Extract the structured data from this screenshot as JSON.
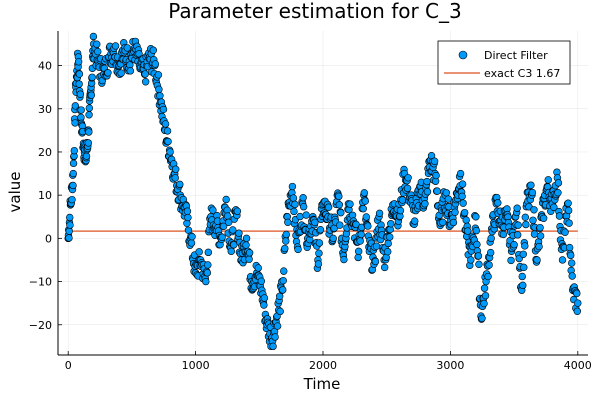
{
  "chart_data": {
    "type": "scatter",
    "title": "Parameter estimation for C_3",
    "xlabel": "Time",
    "ylabel": "value",
    "xlim": [
      -80,
      4080
    ],
    "ylim": [
      -27,
      48
    ],
    "xticks": [
      0,
      1000,
      2000,
      3000,
      4000
    ],
    "yticks": [
      -20,
      -10,
      0,
      10,
      20,
      30,
      40
    ],
    "grid": true,
    "legend_position": "top-right",
    "series": [
      {
        "name": "Direct Filter",
        "kind": "scatter",
        "color": "#009AFA",
        "x": [
          0,
          20,
          40,
          60,
          80,
          100,
          120,
          140,
          160,
          180,
          200,
          240,
          280,
          320,
          360,
          400,
          440,
          480,
          520,
          560,
          600,
          640,
          680,
          720,
          760,
          800,
          840,
          880,
          920,
          960,
          1000,
          1040,
          1080,
          1120,
          1160,
          1200,
          1240,
          1280,
          1320,
          1360,
          1400,
          1440,
          1480,
          1520,
          1560,
          1600,
          1640,
          1680,
          1720,
          1760,
          1800,
          1840,
          1880,
          1920,
          1960,
          2000,
          2040,
          2080,
          2120,
          2160,
          2200,
          2240,
          2280,
          2320,
          2360,
          2400,
          2440,
          2480,
          2520,
          2560,
          2600,
          2640,
          2680,
          2720,
          2760,
          2800,
          2840,
          2880,
          2920,
          2960,
          3000,
          3040,
          3080,
          3120,
          3160,
          3200,
          3240,
          3280,
          3320,
          3360,
          3400,
          3440,
          3480,
          3520,
          3560,
          3600,
          3640,
          3680,
          3720,
          3760,
          3800,
          3840,
          3880,
          3920,
          3960,
          4000
        ],
        "y": [
          0,
          8,
          15,
          35,
          42,
          28,
          22,
          18,
          25,
          35,
          45,
          40,
          38,
          42,
          44,
          40,
          43,
          41,
          44,
          40,
          38,
          42,
          40,
          33,
          25,
          20,
          14,
          10,
          6,
          0,
          -8,
          -5,
          -10,
          5,
          3,
          0,
          9,
          -3,
          6,
          -5,
          0,
          -10,
          -8,
          -12,
          -20,
          -23,
          -18,
          -12,
          5,
          12,
          -2,
          8,
          0,
          5,
          -5,
          8,
          5,
          0,
          10,
          -4,
          8,
          4,
          -3,
          10,
          -2,
          -6,
          5,
          -5,
          2,
          8,
          5,
          15,
          10,
          4,
          12,
          8,
          18,
          15,
          3,
          10,
          4,
          8,
          15,
          2,
          -5,
          5,
          -18,
          -10,
          0,
          8,
          3,
          5,
          -3,
          6,
          -12,
          8,
          10,
          -5,
          5,
          12,
          8,
          14,
          -5,
          8,
          -12,
          -15
        ],
        "values_note": "dense noisy trajectory; representative points sampled from the plotted curve"
      },
      {
        "name": "exact C3 1.67",
        "kind": "line",
        "color": "#E26F46",
        "x": [
          0,
          4000
        ],
        "y": [
          1.67,
          1.67
        ]
      }
    ]
  }
}
